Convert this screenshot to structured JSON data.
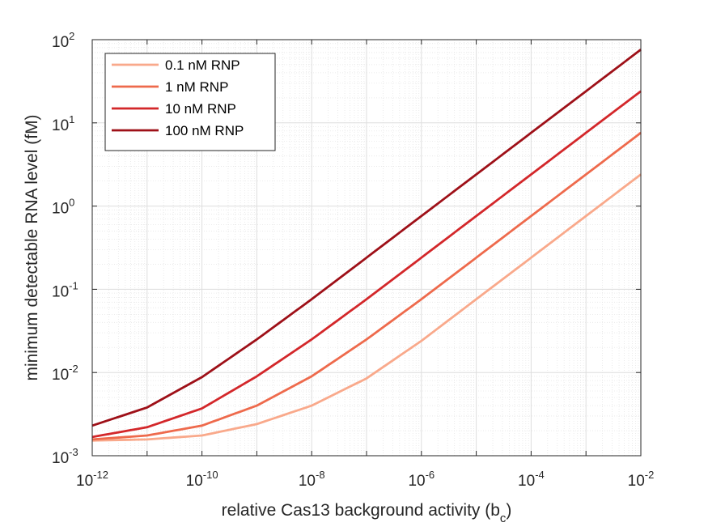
{
  "chart_data": {
    "type": "line",
    "xlabel_main": "relative Cas13 background activity (b",
    "xlabel_sub": "c",
    "xlabel_close": ")",
    "ylabel": "minimum detectable RNA level (fM)",
    "x_scale": "log",
    "y_scale": "log",
    "xlim": [
      1e-12,
      0.01
    ],
    "ylim": [
      0.001,
      100
    ],
    "grid": true,
    "minor_grid": true,
    "legend_position": "top-left",
    "x_ticks": [
      {
        "base": "10",
        "exp": "-12"
      },
      {
        "base": "10",
        "exp": "-10"
      },
      {
        "base": "10",
        "exp": "-8"
      },
      {
        "base": "10",
        "exp": "-6"
      },
      {
        "base": "10",
        "exp": "-4"
      },
      {
        "base": "10",
        "exp": "-2"
      }
    ],
    "y_ticks": [
      {
        "base": "10",
        "exp": "-3"
      },
      {
        "base": "10",
        "exp": "-2"
      },
      {
        "base": "10",
        "exp": "-1"
      },
      {
        "base": "10",
        "exp": "0"
      },
      {
        "base": "10",
        "exp": "1"
      },
      {
        "base": "10",
        "exp": "2"
      }
    ],
    "x": [
      1e-12,
      1e-11,
      1e-10,
      1e-09,
      1e-08,
      1e-07,
      1e-06,
      1e-05,
      0.0001,
      0.001,
      0.01
    ],
    "series": [
      {
        "name": "0.1 nM RNP",
        "color": "#f9a98b",
        "values": [
          0.00152,
          0.00157,
          0.00175,
          0.0024,
          0.004,
          0.0085,
          0.024,
          0.076,
          0.24,
          0.76,
          2.4
        ]
      },
      {
        "name": "1 nM RNP",
        "color": "#ee6a4c",
        "values": [
          0.00157,
          0.00175,
          0.0023,
          0.004,
          0.009,
          0.025,
          0.076,
          0.24,
          0.76,
          2.4,
          7.6
        ]
      },
      {
        "name": "10 nM RNP",
        "color": "#d3272a",
        "values": [
          0.00168,
          0.0022,
          0.0037,
          0.009,
          0.025,
          0.076,
          0.24,
          0.76,
          2.4,
          7.6,
          24.0
        ]
      },
      {
        "name": "100 nM RNP",
        "color": "#9e1018",
        "values": [
          0.0023,
          0.0038,
          0.0088,
          0.025,
          0.076,
          0.24,
          0.76,
          2.4,
          7.6,
          24.0,
          76.0
        ]
      }
    ]
  }
}
